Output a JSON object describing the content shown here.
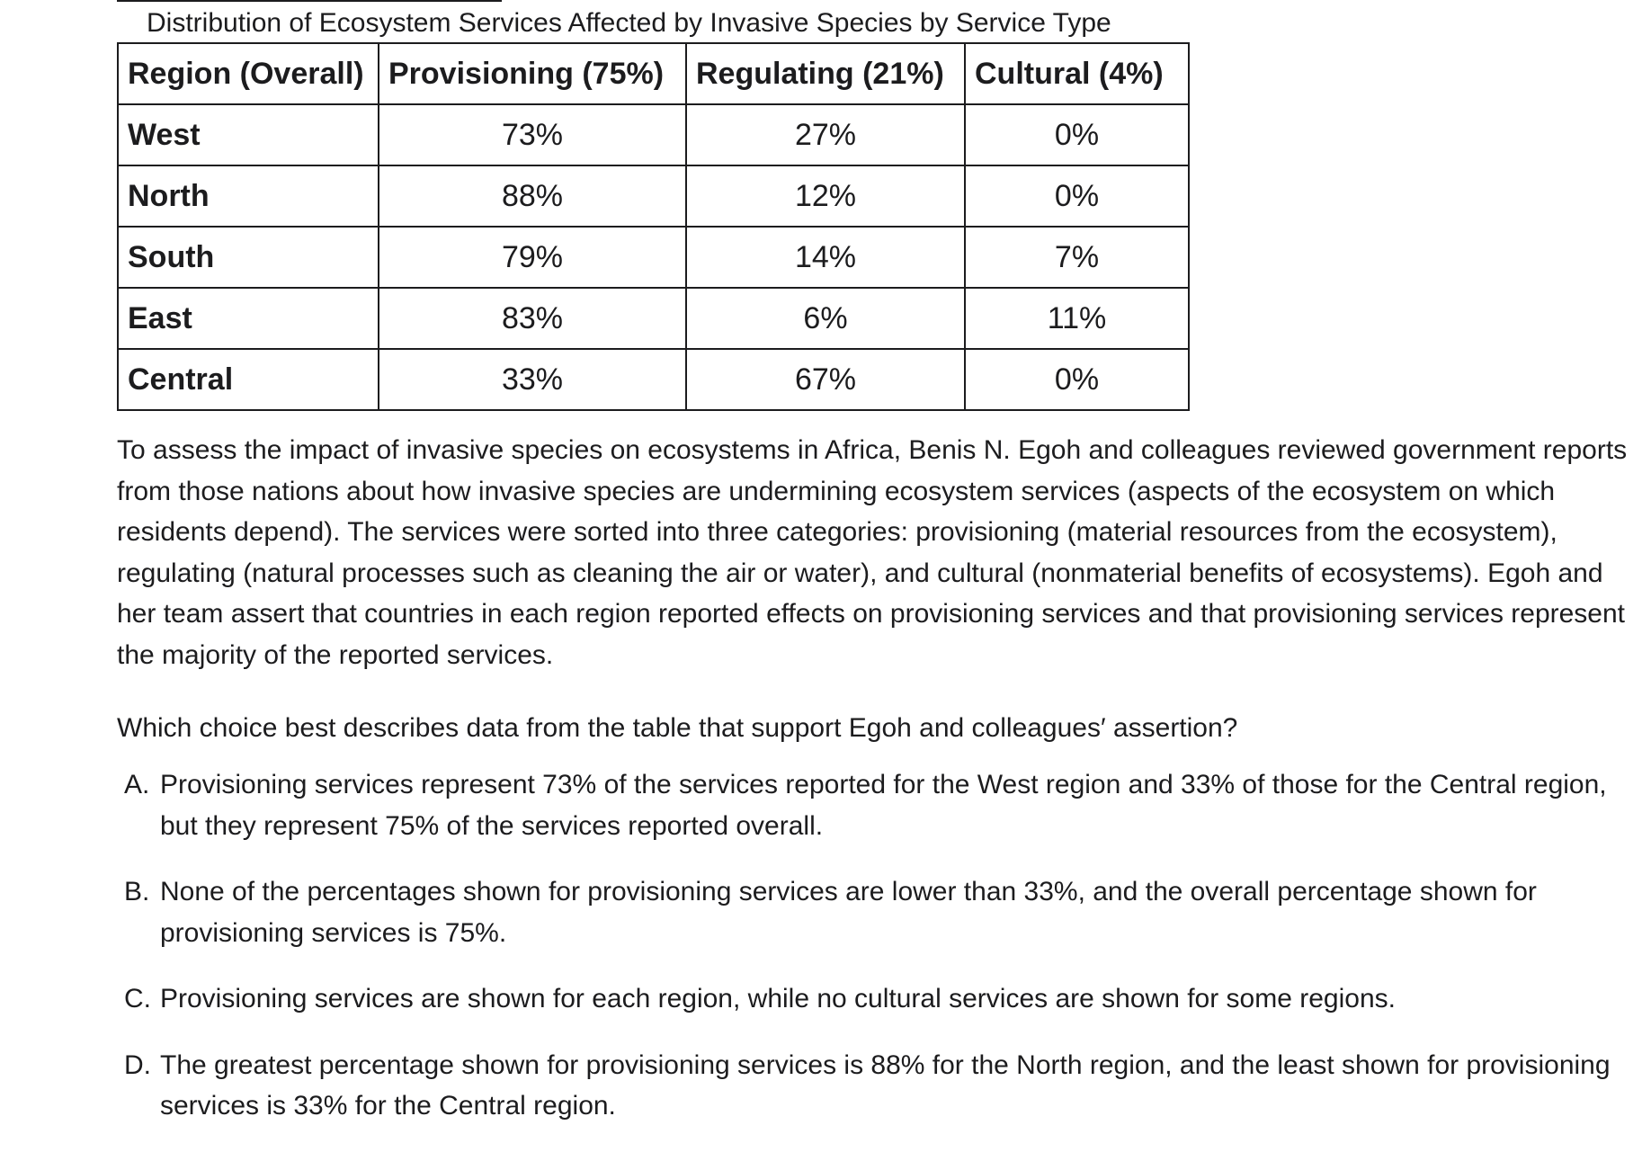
{
  "table": {
    "caption": "Distribution of Ecosystem Services Affected by Invasive Species by Service Type",
    "headers": [
      "Region (Overall)",
      "Provisioning (75%)",
      "Regulating (21%)",
      "Cultural (4%)"
    ],
    "rows": [
      {
        "region": "West",
        "provisioning": "73%",
        "regulating": "27%",
        "cultural": "0%"
      },
      {
        "region": "North",
        "provisioning": "88%",
        "regulating": "12%",
        "cultural": "0%"
      },
      {
        "region": "South",
        "provisioning": "79%",
        "regulating": "14%",
        "cultural": "7%"
      },
      {
        "region": "East",
        "provisioning": "83%",
        "regulating": "6%",
        "cultural": "11%"
      },
      {
        "region": "Central",
        "provisioning": "33%",
        "regulating": "67%",
        "cultural": "0%"
      }
    ]
  },
  "passage": "To assess the impact of invasive species on ecosystems in Africa, Benis N. Egoh and colleagues reviewed government reports from those nations about how invasive species are undermining ecosystem services (aspects of the ecosystem on which residents depend). The services were sorted into three categories: provisioning (material resources from the ecosystem), regulating (natural processes such as cleaning the air or water), and cultural (nonmaterial benefits of ecosystems). Egoh and her team assert that countries in each region reported effects on provisioning services and that provisioning services represent the majority of the reported services.",
  "question": "Which choice best describes data from the table that support Egoh and colleagues′ assertion?",
  "choices": [
    {
      "letter": "A.",
      "text": "Provisioning services represent 73% of the services reported for the West region and 33% of those for the Central region, but they represent 75% of the services reported overall."
    },
    {
      "letter": "B.",
      "text": "None of the percentages shown for provisioning services are lower than 33%, and the overall percentage shown for provisioning services is 75%."
    },
    {
      "letter": "C.",
      "text": "Provisioning services are shown for each region, while no cultural services are shown for some regions."
    },
    {
      "letter": "D.",
      "text": "The greatest percentage shown for provisioning services is 88% for the North region, and the least shown for provisioning services is 33% for the Central region."
    }
  ]
}
